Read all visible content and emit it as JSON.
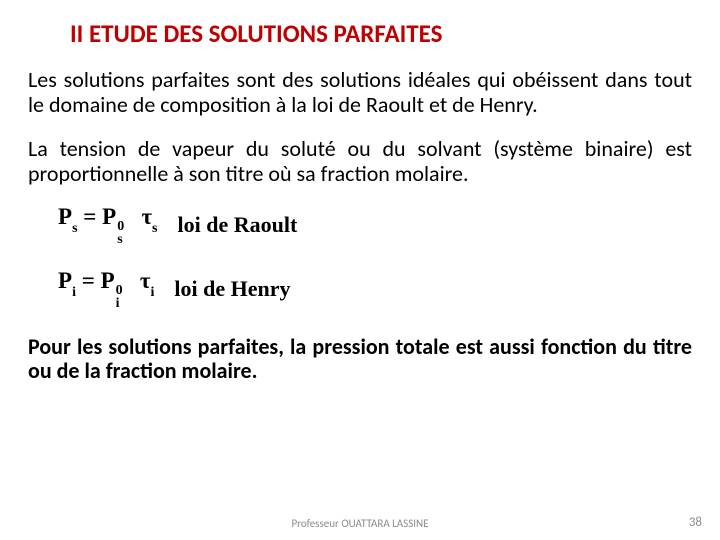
{
  "title": "II ETUDE DES SOLUTIONS PARFAITES",
  "title_color": "#c00000",
  "para1": "Les solutions parfaites sont des solutions idéales qui obéissent dans tout le domaine de composition à la loi de Raoult et de Henry.",
  "para2": "La tension de vapeur du soluté ou du solvant (système binaire) est proportionnelle à son titre où sa fraction molaire.",
  "eq1": {
    "left_sym": "P",
    "left_sub": "s",
    "right_sym": "P",
    "right_sup": "0",
    "right_sub": "s",
    "tau_sym": "τ",
    "tau_sub": "s",
    "label": "loi de Raoult"
  },
  "eq2": {
    "left_sym": "P",
    "left_sub": "i",
    "right_sym": "P",
    "right_sup": "0",
    "right_sub": "i",
    "tau_sym": "τ",
    "tau_sub": "i",
    "label": "loi de Henry"
  },
  "conclusion": "Pour les solutions parfaites, la pression totale est aussi fonction du titre ou de la fraction molaire.",
  "footer_author": "Professeur OUATTARA LASSINE",
  "footer_page": "38",
  "body_fontsize": 22,
  "title_fontsize": 25,
  "text_color": "#000000",
  "footer_color": "#8c8c8c",
  "background_color": "#ffffff"
}
